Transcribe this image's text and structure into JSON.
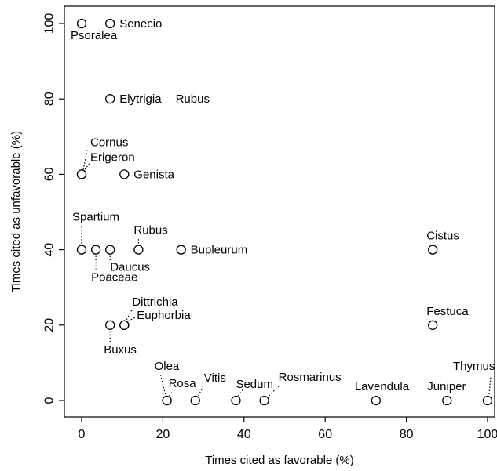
{
  "chart_data": {
    "type": "scatter",
    "xlabel": "Times cited as favorable (%)",
    "ylabel": "Times cited as unfavorable (%)",
    "xlim": [
      0,
      100
    ],
    "ylim": [
      0,
      100
    ],
    "xticks": [
      0,
      20,
      40,
      60,
      80,
      100
    ],
    "yticks": [
      0,
      20,
      40,
      60,
      80,
      100
    ],
    "grid": false,
    "points": [
      {
        "label": "Psoralea",
        "x": 0,
        "y": 100
      },
      {
        "label": "Senecio",
        "x": 7,
        "y": 100
      },
      {
        "label": "Elytrigia",
        "x": 7,
        "y": 80
      },
      {
        "label": "Rubus",
        "x": 27,
        "y": 80,
        "marker": false
      },
      {
        "label": "Cornus",
        "x": 0,
        "y": 60
      },
      {
        "label": "Erigeron",
        "x": 0,
        "y": 60
      },
      {
        "label": "Genista",
        "x": 10.5,
        "y": 60
      },
      {
        "label": "Spartium",
        "x": 0,
        "y": 40
      },
      {
        "label": "Poaceae",
        "x": 3.5,
        "y": 40
      },
      {
        "label": "Daucus",
        "x": 7,
        "y": 40
      },
      {
        "label": "Rubus",
        "x": 14,
        "y": 40
      },
      {
        "label": "Bupleurum",
        "x": 24.5,
        "y": 40
      },
      {
        "label": "Cistus",
        "x": 86.5,
        "y": 40
      },
      {
        "label": "Buxus",
        "x": 7,
        "y": 20
      },
      {
        "label": "Dittrichia",
        "x": 10.5,
        "y": 20
      },
      {
        "label": "Euphorbia",
        "x": 10.5,
        "y": 20
      },
      {
        "label": "Festuca",
        "x": 86.5,
        "y": 20
      },
      {
        "label": "Olea",
        "x": 21,
        "y": 0
      },
      {
        "label": "Rosa",
        "x": 21,
        "y": 0
      },
      {
        "label": "Vitis",
        "x": 28,
        "y": 0
      },
      {
        "label": "Sedum",
        "x": 38,
        "y": 0
      },
      {
        "label": "Rosmarinus",
        "x": 45,
        "y": 0
      },
      {
        "label": "Lavendula",
        "x": 72.5,
        "y": 0
      },
      {
        "label": "Juniper",
        "x": 90,
        "y": 0
      },
      {
        "label": "Thymus",
        "x": 100,
        "y": 0
      }
    ]
  }
}
